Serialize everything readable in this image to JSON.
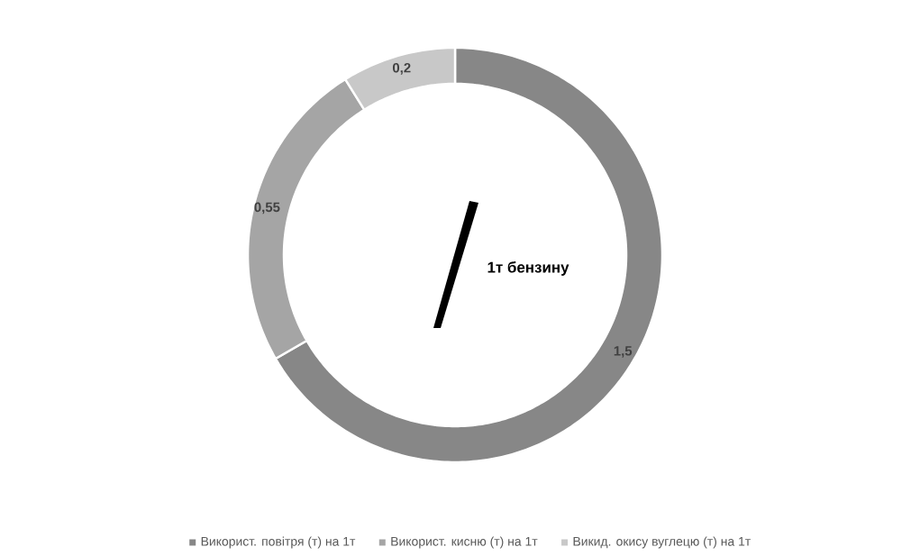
{
  "chart_data": {
    "type": "donut",
    "categories": [
      "Використ. повітря (т) на 1т",
      "Використ. кисню (т) на 1т",
      "Викид. окису вуглецю (т) на 1т"
    ],
    "values": [
      1.5,
      0.55,
      0.2
    ],
    "colors": [
      "#878787",
      "#a5a5a5",
      "#c8c8c8"
    ],
    "value_labels": [
      "1,5",
      "0,55",
      "0,2"
    ],
    "annotations": [
      "1т бензину"
    ],
    "legend": "bottom"
  }
}
